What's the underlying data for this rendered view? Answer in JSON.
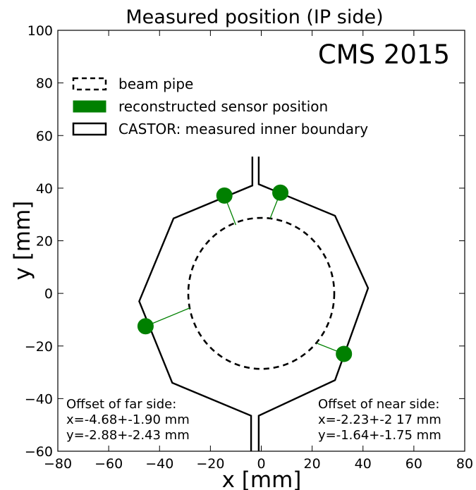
{
  "chart_data": {
    "type": "scatter",
    "title": "Measured position (IP side)",
    "experiment_label": "CMS 2015",
    "xlabel": "x [mm]",
    "ylabel": "y [mm]",
    "xlim": [
      -80,
      80
    ],
    "ylim": [
      -60,
      100
    ],
    "xticks": [
      -80,
      -60,
      -40,
      -20,
      0,
      20,
      40,
      60,
      80
    ],
    "yticks": [
      -60,
      -40,
      -20,
      0,
      20,
      40,
      60,
      80,
      100
    ],
    "xtick_labels": [
      "−80",
      "−60",
      "−40",
      "−20",
      "0",
      "20",
      "40",
      "60",
      "80"
    ],
    "ytick_labels": [
      "−60",
      "−40",
      "−20",
      "0",
      "20",
      "40",
      "60",
      "80",
      "100"
    ],
    "grid": false,
    "legend_position": "top-left",
    "legend": [
      {
        "label": "beam pipe",
        "style": "dashed"
      },
      {
        "label": "reconstructed sensor position",
        "style": "filled",
        "color": "#008000"
      },
      {
        "label": "CASTOR: measured inner boundary",
        "style": "outline"
      }
    ],
    "beam_pipe": {
      "center": [
        0,
        0
      ],
      "radius": 28.7
    },
    "castor_boundary": [
      [
        -3.5,
        41
      ],
      [
        -34.5,
        28.5
      ],
      [
        -48,
        -3
      ],
      [
        -35,
        -34
      ],
      [
        -4,
        -46.5
      ],
      [
        -4,
        -63
      ],
      [
        -4,
        -46.5
      ],
      [
        2,
        -46.5
      ],
      [
        2,
        -63
      ],
      [
        2,
        -46.5
      ],
      [
        28,
        -33
      ],
      [
        41.5,
        2
      ],
      [
        29,
        29.5
      ],
      [
        -2.5,
        41.5
      ],
      [
        -2.5,
        52
      ],
      [
        -2.5,
        41.5
      ],
      [
        -3.5,
        41
      ],
      [
        -3.5,
        52
      ]
    ],
    "castor_left": [
      [
        -3.5,
        52
      ],
      [
        -3.5,
        41
      ],
      [
        -34.5,
        28.5
      ],
      [
        -48,
        -3
      ],
      [
        -35,
        -34
      ],
      [
        -4,
        -46.5
      ],
      [
        -4,
        -60
      ]
    ],
    "castor_right": [
      [
        -1,
        52
      ],
      [
        -1,
        41.5
      ],
      [
        29,
        29.5
      ],
      [
        42,
        2
      ],
      [
        29,
        -33
      ],
      [
        -1,
        -46.5
      ],
      [
        -1,
        -60
      ]
    ],
    "sensors": [
      {
        "x": -14.5,
        "y": 37.2,
        "line_to": [
          -10,
          26
        ]
      },
      {
        "x": 7.5,
        "y": 38.3,
        "line_to": [
          3.5,
          28.5
        ]
      },
      {
        "x": -45.5,
        "y": -12.5,
        "line_to": [
          -28,
          -5.5
        ]
      },
      {
        "x": 32.5,
        "y": -23,
        "line_to": [
          22,
          -19
        ]
      }
    ],
    "colors": {
      "sensor": "#008000",
      "line": "#000000"
    }
  },
  "annotations": {
    "far": {
      "heading": "Offset of far side:",
      "x": "x=-4.68+-1.90 mm",
      "y": "y=-2.88+-2.43 mm"
    },
    "near": {
      "heading": "Offset of near side:",
      "x": "x=-2.23+-2 17 mm",
      "y": "y=-1.64+-1.75 mm"
    }
  }
}
